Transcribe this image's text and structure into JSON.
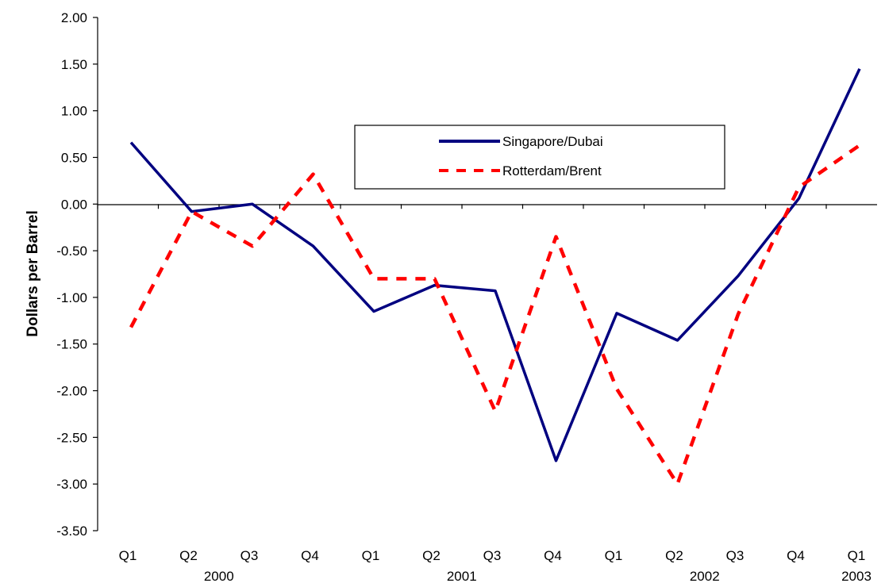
{
  "chart_data": {
    "type": "line",
    "ylabel": "Dollars per Barrel",
    "ylim": [
      -3.5,
      2.0
    ],
    "y_ticks": [
      "2.00",
      "1.50",
      "1.00",
      "0.50",
      "0.00",
      "-0.50",
      "-1.00",
      "-1.50",
      "-2.00",
      "-2.50",
      "-3.00",
      "-3.50"
    ],
    "categories": [
      "Q1",
      "Q2",
      "Q3",
      "Q4",
      "Q1",
      "Q2",
      "Q3",
      "Q4",
      "Q1",
      "Q2",
      "Q3",
      "Q4",
      "Q1"
    ],
    "years": [
      "2000",
      "2001",
      "2002",
      "2003"
    ],
    "series": [
      {
        "name": "Singapore/Dubai",
        "color": "#000080",
        "style": "solid",
        "values": [
          0.66,
          -0.08,
          0.0,
          -0.45,
          -1.15,
          -0.87,
          -0.93,
          -2.75,
          -1.17,
          -1.46,
          -0.77,
          0.06,
          1.45
        ]
      },
      {
        "name": "Rotterdam/Brent",
        "color": "#ff0000",
        "style": "dashed",
        "values": [
          -1.32,
          -0.08,
          -0.45,
          0.32,
          -0.8,
          -0.8,
          -2.22,
          -0.35,
          -1.98,
          -3.0,
          -1.18,
          0.18,
          0.63
        ]
      }
    ],
    "legend_position": "center-top",
    "grid": false
  }
}
